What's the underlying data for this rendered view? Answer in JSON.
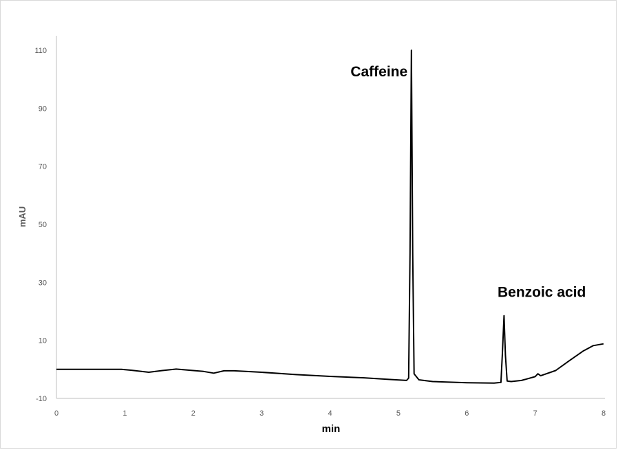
{
  "chart_data": {
    "type": "line",
    "title": "",
    "xlabel": "min",
    "ylabel": "mAU",
    "xlim": [
      0,
      8
    ],
    "ylim": [
      -10,
      115
    ],
    "x_ticks": [
      0,
      1,
      2,
      3,
      4,
      5,
      6,
      7,
      8
    ],
    "y_ticks": [
      -10,
      10,
      30,
      50,
      70,
      90,
      110
    ],
    "grid": false,
    "line_color": "#000000",
    "axis_color": "#bfbfbf",
    "series": [
      {
        "points": [
          [
            0.0,
            0.0
          ],
          [
            0.5,
            0.0
          ],
          [
            0.95,
            0.0
          ],
          [
            1.1,
            -0.3
          ],
          [
            1.35,
            -1.0
          ],
          [
            1.55,
            -0.4
          ],
          [
            1.75,
            0.1
          ],
          [
            2.0,
            -0.4
          ],
          [
            2.15,
            -0.7
          ],
          [
            2.3,
            -1.3
          ],
          [
            2.45,
            -0.5
          ],
          [
            2.6,
            -0.5
          ],
          [
            3.0,
            -1.0
          ],
          [
            3.5,
            -1.8
          ],
          [
            4.0,
            -2.4
          ],
          [
            4.5,
            -2.9
          ],
          [
            4.9,
            -3.5
          ],
          [
            5.12,
            -3.8
          ],
          [
            5.15,
            -3.0
          ],
          [
            5.17,
            40.0
          ],
          [
            5.19,
            110.0
          ],
          [
            5.21,
            40.0
          ],
          [
            5.23,
            -1.5
          ],
          [
            5.3,
            -3.6
          ],
          [
            5.5,
            -4.2
          ],
          [
            6.0,
            -4.6
          ],
          [
            6.4,
            -4.7
          ],
          [
            6.5,
            -4.5
          ],
          [
            6.52,
            5.0
          ],
          [
            6.545,
            18.5
          ],
          [
            6.565,
            5.0
          ],
          [
            6.59,
            -4.0
          ],
          [
            6.65,
            -4.2
          ],
          [
            6.8,
            -3.8
          ],
          [
            7.0,
            -2.5
          ],
          [
            7.04,
            -1.5
          ],
          [
            7.08,
            -2.2
          ],
          [
            7.3,
            -0.4
          ],
          [
            7.5,
            3.0
          ],
          [
            7.7,
            6.3
          ],
          [
            7.85,
            8.2
          ],
          [
            8.0,
            8.8
          ]
        ]
      }
    ],
    "annotations": [
      {
        "text": "Caffeine",
        "x": 4.3,
        "y": 101
      },
      {
        "text": "Benzoic acid",
        "x": 6.45,
        "y": 25
      }
    ]
  }
}
